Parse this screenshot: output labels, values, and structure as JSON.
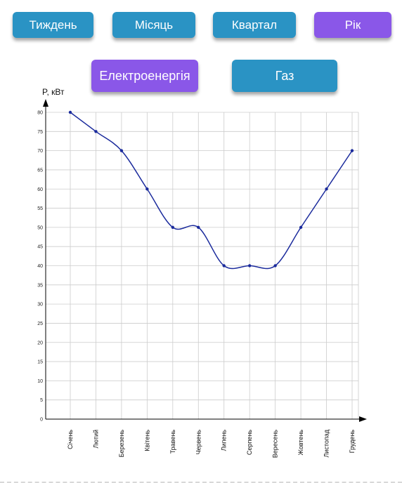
{
  "period_buttons": [
    {
      "label": "Тиждень",
      "active": false
    },
    {
      "label": "Місяць",
      "active": false
    },
    {
      "label": "Квартал",
      "active": false
    },
    {
      "label": "Рік",
      "active": true
    }
  ],
  "resource_buttons": [
    {
      "label": "Електроенергія",
      "active": true
    },
    {
      "label": "Газ",
      "active": false
    }
  ],
  "colors": {
    "button_blue": "#2a93c4",
    "button_active": "#8a57e8",
    "line": "#1a2a9c",
    "grid": "#cccccc"
  },
  "chart_data": {
    "type": "line",
    "title": "",
    "xlabel": "",
    "ylabel": "P, кВт",
    "categories": [
      "Січень",
      "Лютий",
      "Березень",
      "Квітень",
      "Травень",
      "Червень",
      "Липень",
      "Серпень",
      "Вересень",
      "Жовтень",
      "Листопад",
      "Грудень"
    ],
    "series": [
      {
        "values": [
          80,
          75,
          70,
          60,
          50,
          50,
          40,
          40,
          40,
          50,
          60,
          70
        ]
      }
    ],
    "ylim": [
      0,
      80
    ],
    "yticks": [
      0,
      5,
      10,
      15,
      20,
      25,
      30,
      35,
      40,
      45,
      50,
      55,
      60,
      65,
      70,
      75,
      80
    ],
    "grid": true,
    "smooth": true
  }
}
